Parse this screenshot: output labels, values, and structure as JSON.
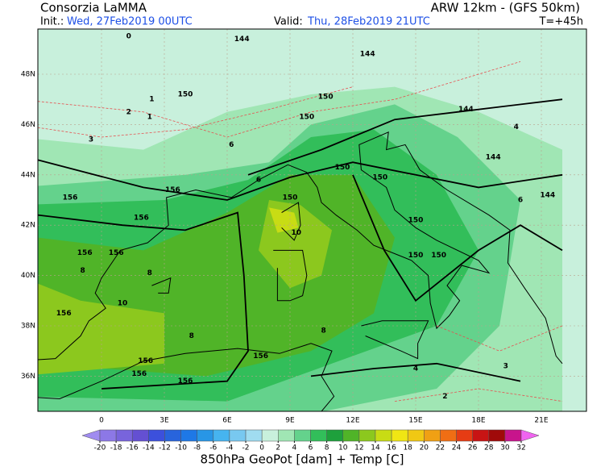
{
  "header": {
    "title": "Consorzia LaMMA",
    "model": "ARW 12km - (GFS 50km)",
    "init_label": "Init.:",
    "init_time": "Wed, 27Feb2019 00UTC",
    "valid_label": "Valid:",
    "valid_time": "Thu, 28Feb2019 21UTC",
    "lead": "T=+45h"
  },
  "map": {
    "lat_labels": [
      "48N",
      "46N",
      "44N",
      "42N",
      "40N",
      "38N",
      "36N"
    ],
    "lon_labels": [
      "0",
      "3E",
      "6E",
      "9E",
      "12E",
      "15E",
      "18E",
      "21E"
    ],
    "contour_labels": [
      "150",
      "150",
      "150",
      "150",
      "150",
      "150",
      "150",
      "150",
      "150",
      "144",
      "144",
      "144",
      "144",
      "144",
      "156",
      "156",
      "156",
      "156",
      "156",
      "156",
      "156",
      "156",
      "156",
      "156",
      "1",
      "1",
      "2",
      "2",
      "3",
      "3",
      "4",
      "4",
      "6",
      "6",
      "6",
      "8",
      "8",
      "8",
      "8",
      "10",
      "10",
      "0"
    ]
  },
  "colorbar": {
    "ticks": [
      -20,
      -18,
      -16,
      -14,
      -12,
      -10,
      -8,
      -6,
      -4,
      -2,
      0,
      2,
      4,
      6,
      8,
      10,
      12,
      14,
      16,
      18,
      20,
      22,
      24,
      26,
      28,
      30,
      32
    ],
    "colors": [
      "#a08cf0",
      "#8c78e6",
      "#7864dc",
      "#6450d2",
      "#3c50dc",
      "#2864dc",
      "#1e78e6",
      "#2896e6",
      "#46b4f0",
      "#78c8f0",
      "#a0dcf0",
      "#c8f0dc",
      "#a0e6b4",
      "#64d28c",
      "#32be5a",
      "#1ea03c",
      "#50b428",
      "#8cc81e",
      "#c8dc14",
      "#f0e614",
      "#f0c814",
      "#f0a014",
      "#f06e14",
      "#e63c14",
      "#c81414",
      "#a00a0a",
      "#c8148c",
      "#f064f0"
    ],
    "caption": "850hPa GeoPot [dam] + Temp [C]"
  }
}
